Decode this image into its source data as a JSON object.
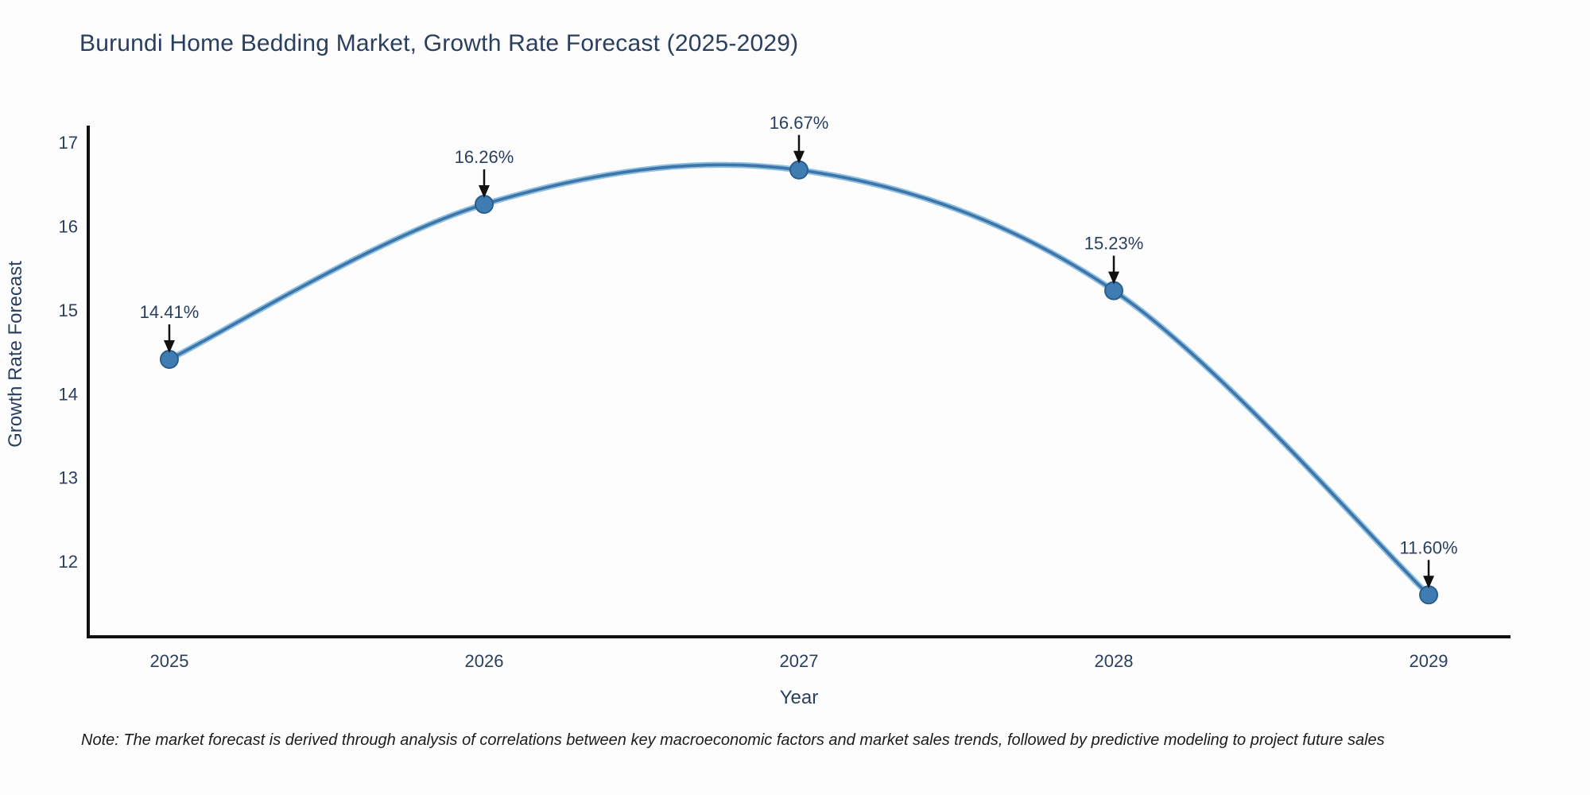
{
  "title": "Burundi Home Bedding Market, Growth Rate Forecast (2025-2029)",
  "note": "Note: The market forecast is derived through analysis of correlations between key macroeconomic factors and market sales trends, followed by predictive modeling to project future sales",
  "chart_data": {
    "type": "line",
    "title": "Burundi Home Bedding Market, Growth Rate Forecast (2025-2029)",
    "xlabel": "Year",
    "ylabel": "Growth Rate Forecast",
    "x": [
      2025,
      2026,
      2027,
      2028,
      2029
    ],
    "series": [
      {
        "name": "Growth Rate Forecast",
        "values": [
          14.41,
          16.26,
          16.67,
          15.23,
          11.6
        ]
      }
    ],
    "point_labels": [
      "14.41%",
      "16.26%",
      "16.67%",
      "15.23%",
      "11.60%"
    ],
    "x_ticks": [
      2025,
      2026,
      2027,
      2028,
      2029
    ],
    "y_ticks": [
      12,
      13,
      14,
      15,
      16,
      17
    ],
    "xlim": [
      2024.74,
      2029.26
    ],
    "ylim": [
      11.1,
      17.18
    ],
    "grid": false,
    "legend": "none",
    "line_style": "spline",
    "marker": "circle",
    "annotations": "value labels with down arrows above each point",
    "colors": {
      "line": "#3d75a8",
      "line_halo": "#8fc0e2",
      "marker_fill": "#3f7cb2",
      "marker_edge": "#2b5e8c",
      "axis": "#111111",
      "text": "#2a3f5f",
      "arrow": "#111111",
      "note_text": "#1c1c1c",
      "background": "#fdfdfe"
    }
  }
}
